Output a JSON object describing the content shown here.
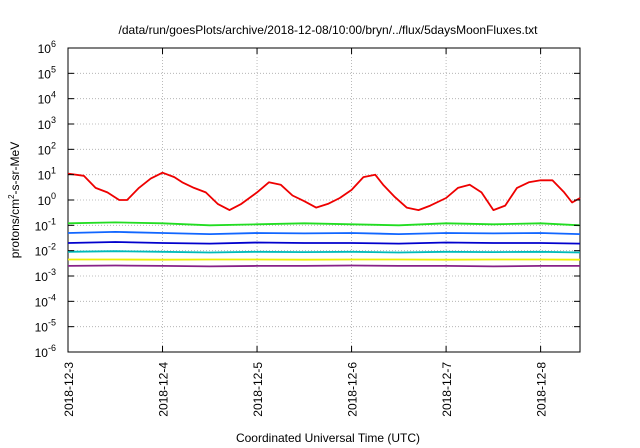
{
  "chart_data": {
    "type": "line",
    "title": "/data/run/goesPlots/archive/2018-12-08/10:00/bryn/../flux/5daysMoonFluxes.txt",
    "xlabel": "Coordinated Universal Time (UTC)",
    "ylabel": {
      "prefix": "protons/cm",
      "superscript": "2",
      "suffix": "-s-sr-MeV"
    },
    "yscale": "log",
    "ylim": [
      1e-06,
      1000000.0
    ],
    "y_ticks": [
      {
        "base": "10",
        "exp": "-6"
      },
      {
        "base": "10",
        "exp": "-5"
      },
      {
        "base": "10",
        "exp": "-4"
      },
      {
        "base": "10",
        "exp": "-3"
      },
      {
        "base": "10",
        "exp": "-2"
      },
      {
        "base": "10",
        "exp": "-1"
      },
      {
        "base": "10",
        "exp": "0"
      },
      {
        "base": "10",
        "exp": "1"
      },
      {
        "base": "10",
        "exp": "2"
      },
      {
        "base": "10",
        "exp": "3"
      },
      {
        "base": "10",
        "exp": "4"
      },
      {
        "base": "10",
        "exp": "5"
      },
      {
        "base": "10",
        "exp": "6"
      }
    ],
    "xlim": [
      "2018-12-03",
      "2018-12-08T10:00"
    ],
    "x_ticks": [
      "2018-12-3",
      "2018-12-4",
      "2018-12-5",
      "2018-12-6",
      "2018-12-7",
      "2018-12-8"
    ],
    "grid": true,
    "series": [
      {
        "color": "#ee0000",
        "x": [
          "2018-12-03T00:00",
          "2018-12-03T04:00",
          "2018-12-03T07:00",
          "2018-12-03T10:00",
          "2018-12-03T13:00",
          "2018-12-03T15:00",
          "2018-12-03T18:00",
          "2018-12-03T21:00",
          "2018-12-04T00:00",
          "2018-12-04T03:00",
          "2018-12-04T05:00",
          "2018-12-04T08:00",
          "2018-12-04T11:00",
          "2018-12-04T14:00",
          "2018-12-04T17:00",
          "2018-12-04T20:00",
          "2018-12-05T00:00",
          "2018-12-05T03:00",
          "2018-12-05T06:00",
          "2018-12-05T09:00",
          "2018-12-05T12:00",
          "2018-12-05T15:00",
          "2018-12-05T18:00",
          "2018-12-05T21:00",
          "2018-12-06T00:00",
          "2018-12-06T03:00",
          "2018-12-06T06:00",
          "2018-12-06T08:00",
          "2018-12-06T11:00",
          "2018-12-06T14:00",
          "2018-12-06T17:00",
          "2018-12-06T20:00",
          "2018-12-07T00:00",
          "2018-12-07T03:00",
          "2018-12-07T06:00",
          "2018-12-07T09:00",
          "2018-12-07T12:00",
          "2018-12-07T15:00",
          "2018-12-07T18:00",
          "2018-12-07T21:00",
          "2018-12-08T00:00",
          "2018-12-08T03:00",
          "2018-12-08T06:00",
          "2018-12-08T08:00",
          "2018-12-08T10:00"
        ],
        "y": [
          11,
          9,
          3,
          2,
          1,
          1,
          3,
          7,
          12,
          8,
          5,
          3,
          2,
          0.7,
          0.4,
          0.7,
          2,
          5,
          4,
          1.5,
          0.9,
          0.5,
          0.7,
          1.2,
          2.5,
          8,
          10,
          4,
          1.3,
          0.5,
          0.4,
          0.6,
          1.2,
          3,
          4,
          2,
          0.4,
          0.6,
          3,
          5,
          6,
          6,
          2,
          0.8,
          1.2
        ]
      },
      {
        "color": "#22dd22",
        "x": [
          "2018-12-03T00:00",
          "2018-12-03T12:00",
          "2018-12-04T00:00",
          "2018-12-04T12:00",
          "2018-12-05T00:00",
          "2018-12-05T12:00",
          "2018-12-06T00:00",
          "2018-12-06T12:00",
          "2018-12-07T00:00",
          "2018-12-07T12:00",
          "2018-12-08T00:00",
          "2018-12-08T10:00"
        ],
        "y": [
          0.12,
          0.13,
          0.12,
          0.1,
          0.11,
          0.12,
          0.11,
          0.1,
          0.12,
          0.11,
          0.12,
          0.1
        ]
      },
      {
        "color": "#1166ff",
        "x": [
          "2018-12-03T00:00",
          "2018-12-03T12:00",
          "2018-12-04T00:00",
          "2018-12-04T12:00",
          "2018-12-05T00:00",
          "2018-12-05T12:00",
          "2018-12-06T00:00",
          "2018-12-06T12:00",
          "2018-12-07T00:00",
          "2018-12-07T12:00",
          "2018-12-08T00:00",
          "2018-12-08T10:00"
        ],
        "y": [
          0.05,
          0.055,
          0.05,
          0.045,
          0.05,
          0.048,
          0.05,
          0.045,
          0.05,
          0.048,
          0.05,
          0.045
        ]
      },
      {
        "color": "#0000cc",
        "x": [
          "2018-12-03T00:00",
          "2018-12-03T12:00",
          "2018-12-04T00:00",
          "2018-12-04T12:00",
          "2018-12-05T00:00",
          "2018-12-05T12:00",
          "2018-12-06T00:00",
          "2018-12-06T12:00",
          "2018-12-07T00:00",
          "2018-12-07T12:00",
          "2018-12-08T00:00",
          "2018-12-08T10:00"
        ],
        "y": [
          0.02,
          0.022,
          0.02,
          0.019,
          0.021,
          0.02,
          0.02,
          0.019,
          0.021,
          0.02,
          0.02,
          0.019
        ]
      },
      {
        "color": "#00bbbb",
        "x": [
          "2018-12-03T00:00",
          "2018-12-03T12:00",
          "2018-12-04T00:00",
          "2018-12-04T12:00",
          "2018-12-05T00:00",
          "2018-12-05T12:00",
          "2018-12-06T00:00",
          "2018-12-06T12:00",
          "2018-12-07T00:00",
          "2018-12-07T12:00",
          "2018-12-08T00:00",
          "2018-12-08T10:00"
        ],
        "y": [
          0.009,
          0.0095,
          0.009,
          0.0085,
          0.009,
          0.0088,
          0.009,
          0.0085,
          0.009,
          0.0088,
          0.009,
          0.0085
        ]
      },
      {
        "color": "#eeee00",
        "x": [
          "2018-12-03T00:00",
          "2018-12-03T12:00",
          "2018-12-04T00:00",
          "2018-12-04T12:00",
          "2018-12-05T00:00",
          "2018-12-05T12:00",
          "2018-12-06T00:00",
          "2018-12-06T12:00",
          "2018-12-07T00:00",
          "2018-12-07T12:00",
          "2018-12-08T00:00",
          "2018-12-08T10:00"
        ],
        "y": [
          0.0045,
          0.0045,
          0.0044,
          0.0045,
          0.0045,
          0.0044,
          0.0045,
          0.0045,
          0.0044,
          0.0045,
          0.0045,
          0.0044
        ]
      },
      {
        "color": "#882288",
        "x": [
          "2018-12-03T00:00",
          "2018-12-03T12:00",
          "2018-12-04T00:00",
          "2018-12-04T12:00",
          "2018-12-05T00:00",
          "2018-12-05T12:00",
          "2018-12-06T00:00",
          "2018-12-06T12:00",
          "2018-12-07T00:00",
          "2018-12-07T12:00",
          "2018-12-08T00:00",
          "2018-12-08T10:00"
        ],
        "y": [
          0.0025,
          0.0026,
          0.0025,
          0.0024,
          0.0025,
          0.0025,
          0.0026,
          0.0025,
          0.0025,
          0.0024,
          0.0025,
          0.0025
        ]
      }
    ]
  }
}
